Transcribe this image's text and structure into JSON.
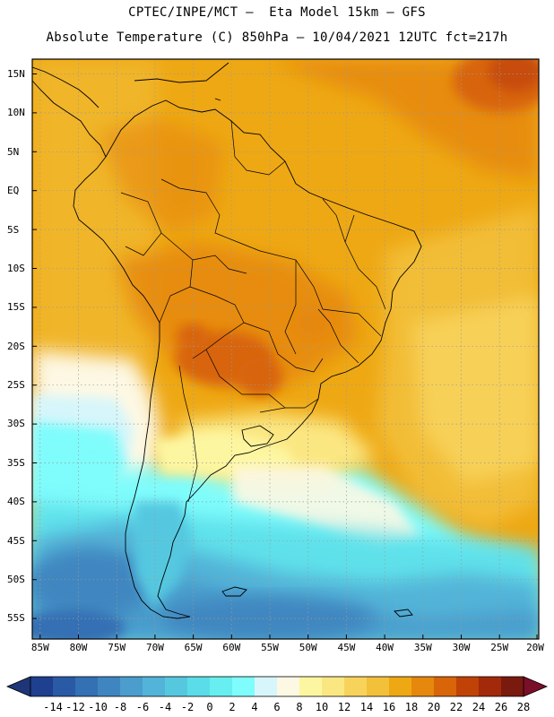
{
  "header": {
    "line1": "CPTEC/INPE/MCT –  Eta Model 15km – GFS",
    "line2": "Absolute Temperature (C) 850hPa – 10/04/2021 12UTC fct=217h"
  },
  "map": {
    "lat_labels": [
      "15N",
      "10N",
      "5N",
      "EQ",
      "5S",
      "10S",
      "15S",
      "20S",
      "25S",
      "30S",
      "35S",
      "40S",
      "45S",
      "50S",
      "55S"
    ],
    "lon_labels": [
      "85W",
      "80W",
      "75W",
      "70W",
      "65W",
      "60W",
      "55W",
      "50W",
      "45W",
      "40W",
      "35W",
      "30W",
      "25W",
      "20W"
    ],
    "lat_range": [
      -58,
      16.5
    ],
    "lon_range": [
      -85,
      -20
    ]
  },
  "colorbar": {
    "labels": [
      "-14",
      "-12",
      "-10",
      "-8",
      "-6",
      "-4",
      "-2",
      "0",
      "2",
      "4",
      "6",
      "8",
      "10",
      "12",
      "14",
      "16",
      "18",
      "20",
      "22",
      "24",
      "26",
      "28"
    ],
    "colors": [
      "#1f3f8f",
      "#2a5aa6",
      "#3470b4",
      "#3f86c0",
      "#4a9dcc",
      "#52b4d8",
      "#55c8e0",
      "#5adde8",
      "#66eef0",
      "#7ffcfc",
      "#d6f6fb",
      "#fdf8e4",
      "#fdf6a0",
      "#fbe782",
      "#f8d35c",
      "#f3c03a",
      "#eea814",
      "#e6880d",
      "#d86508",
      "#c04207",
      "#a22a0a",
      "#7a1a0f"
    ],
    "end_low_color": "#1e3578",
    "end_high_color": "#7a0f2a"
  },
  "colors": {
    "land_border": "#000000",
    "grid": "#9a9a9a"
  }
}
